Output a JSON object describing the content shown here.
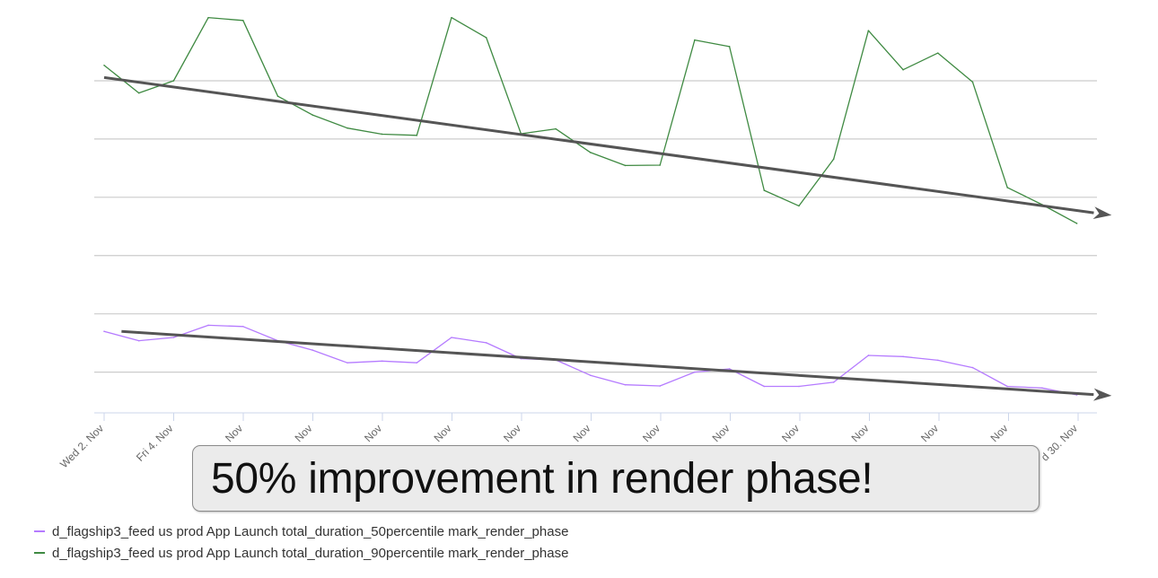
{
  "chart_data": {
    "type": "line",
    "title": "",
    "xlabel": "",
    "ylabel": "",
    "ylim": [
      0,
      100
    ],
    "grid": true,
    "legend_position": "bottom-left",
    "x_ticks": [
      "Wed 2. Nov",
      "Fri 4. Nov",
      "Nov",
      "Nov",
      "Nov",
      "Nov",
      "Nov",
      "Nov",
      "Nov",
      "Nov",
      "Nov",
      "Nov",
      "Nov",
      "Nov",
      "d 30. Nov"
    ],
    "series": [
      {
        "name": "d_flagship3_feed us prod App Launch total_duration_50percentile mark_render_phase",
        "color": "#b57bff",
        "values": [
          20.0,
          17.7,
          18.5,
          21.5,
          21.2,
          17.7,
          15.4,
          12.3,
          12.7,
          12.3,
          18.5,
          17.2,
          13.3,
          13.0,
          9.2,
          6.9,
          6.6,
          10.0,
          10.8,
          6.5,
          6.5,
          7.5,
          14.1,
          13.8,
          12.9,
          11.1,
          6.5,
          6.1,
          4.4
        ]
      },
      {
        "name": "d_flagship3_feed us prod App Launch total_duration_90percentile mark_render_phase",
        "color": "#3f8a42",
        "values": [
          85.3,
          78.5,
          81.5,
          97.0,
          96.3,
          77.7,
          73.1,
          69.9,
          68.4,
          68.1,
          97.0,
          92.1,
          68.5,
          69.7,
          63.9,
          60.7,
          60.8,
          91.5,
          89.9,
          54.6,
          50.8,
          62.3,
          93.8,
          84.2,
          88.3,
          81.2,
          55.3,
          51.1,
          46.5
        ]
      }
    ],
    "trend_arrows": [
      {
        "from": [
          0,
          82.3
        ],
        "to": [
          29,
          48.5
        ]
      },
      {
        "from": [
          0.5,
          20.0
        ],
        "to": [
          29,
          4.2
        ]
      }
    ],
    "annotation": "50% improvement in render phase!"
  },
  "style": {
    "grid_color": "#cccccc",
    "axis_color": "#ccd6eb",
    "arrow_color": "#555555"
  }
}
